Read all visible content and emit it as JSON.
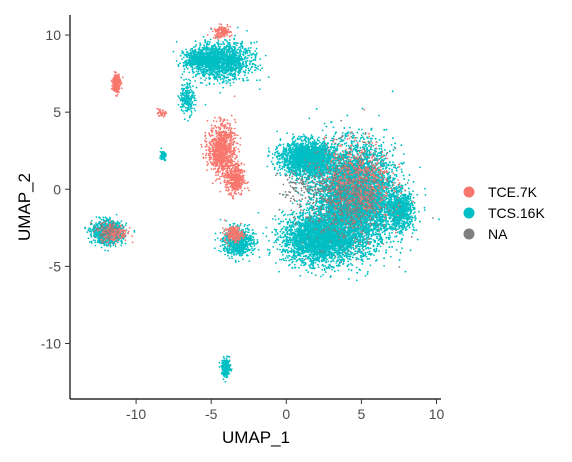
{
  "chart_data": {
    "type": "scatter",
    "title": "",
    "xlabel": "UMAP_1",
    "ylabel": "UMAP_2",
    "xlim": [
      -14.4,
      10.3
    ],
    "ylim": [
      -13.6,
      11.3
    ],
    "xticks": [
      -10,
      -5,
      0,
      5,
      10
    ],
    "yticks": [
      -10,
      -5,
      0,
      5,
      10
    ],
    "grid": false,
    "legend_position": "right",
    "series": [
      {
        "name": "TCE.7K",
        "color": "#F8766D"
      },
      {
        "name": "TCS.16K",
        "color": "#00BFC4"
      },
      {
        "name": "NA",
        "color": "#7F7F7F"
      }
    ],
    "clusters": [
      {
        "series": "TCS.16K",
        "center": [
          -4.2,
          8.3
        ],
        "spread": [
          1.9,
          1.2
        ],
        "count": 1400
      },
      {
        "series": "TCS.16K",
        "center": [
          -5.8,
          8.4
        ],
        "spread": [
          1.0,
          0.7
        ],
        "count": 500
      },
      {
        "series": "TCE.7K",
        "center": [
          -4.3,
          10.2
        ],
        "spread": [
          0.6,
          0.4
        ],
        "count": 120
      },
      {
        "series": "TCS.16K",
        "center": [
          -6.6,
          5.9
        ],
        "spread": [
          0.5,
          1.0
        ],
        "count": 200
      },
      {
        "series": "TCE.7K",
        "center": [
          -11.3,
          6.9
        ],
        "spread": [
          0.25,
          0.6
        ],
        "count": 280
      },
      {
        "series": "TCE.7K",
        "center": [
          -8.3,
          4.9
        ],
        "spread": [
          0.25,
          0.2
        ],
        "count": 40
      },
      {
        "series": "TCS.16K",
        "center": [
          -8.2,
          2.2
        ],
        "spread": [
          0.2,
          0.3
        ],
        "count": 70
      },
      {
        "series": "TCE.7K",
        "center": [
          -4.3,
          2.6
        ],
        "spread": [
          0.9,
          1.6
        ],
        "count": 900
      },
      {
        "series": "TCE.7K",
        "center": [
          -3.4,
          0.6
        ],
        "spread": [
          0.6,
          1.0
        ],
        "count": 400
      },
      {
        "series": "TCS.16K",
        "center": [
          -11.9,
          -2.8
        ],
        "spread": [
          1.0,
          0.7
        ],
        "count": 1000
      },
      {
        "series": "TCE.7K",
        "center": [
          -11.5,
          -2.8
        ],
        "spread": [
          0.9,
          0.6
        ],
        "count": 200
      },
      {
        "series": "TCS.16K",
        "center": [
          -3.2,
          -3.4
        ],
        "spread": [
          1.0,
          0.9
        ],
        "count": 700
      },
      {
        "series": "TCE.7K",
        "center": [
          -3.5,
          -2.9
        ],
        "spread": [
          0.6,
          0.5
        ],
        "count": 180
      },
      {
        "series": "TCS.16K",
        "center": [
          4.6,
          -0.5
        ],
        "spread": [
          2.6,
          3.2
        ],
        "count": 9000
      },
      {
        "series": "TCS.16K",
        "center": [
          1.4,
          2.0
        ],
        "spread": [
          1.7,
          1.1
        ],
        "count": 2200
      },
      {
        "series": "TCS.16K",
        "center": [
          2.2,
          -3.2
        ],
        "spread": [
          2.4,
          1.6
        ],
        "count": 3000
      },
      {
        "series": "TCS.16K",
        "center": [
          7.6,
          -1.4
        ],
        "spread": [
          0.9,
          1.2
        ],
        "count": 800
      },
      {
        "series": "TCS.16K",
        "center": [
          -4.0,
          -11.6
        ],
        "spread": [
          0.3,
          0.6
        ],
        "count": 200
      },
      {
        "series": "TCE.7K",
        "center": [
          4.8,
          0.5
        ],
        "spread": [
          2.2,
          2.6
        ],
        "count": 600
      },
      {
        "series": "NA",
        "center": [
          4.2,
          -0.5
        ],
        "spread": [
          2.6,
          3.0
        ],
        "count": 700
      },
      {
        "series": "NA",
        "center": [
          1.0,
          0.0
        ],
        "spread": [
          1.5,
          1.5
        ],
        "count": 120
      },
      {
        "series": "NA",
        "center": [
          -11.8,
          -2.8
        ],
        "spread": [
          0.9,
          0.6
        ],
        "count": 80
      }
    ]
  }
}
